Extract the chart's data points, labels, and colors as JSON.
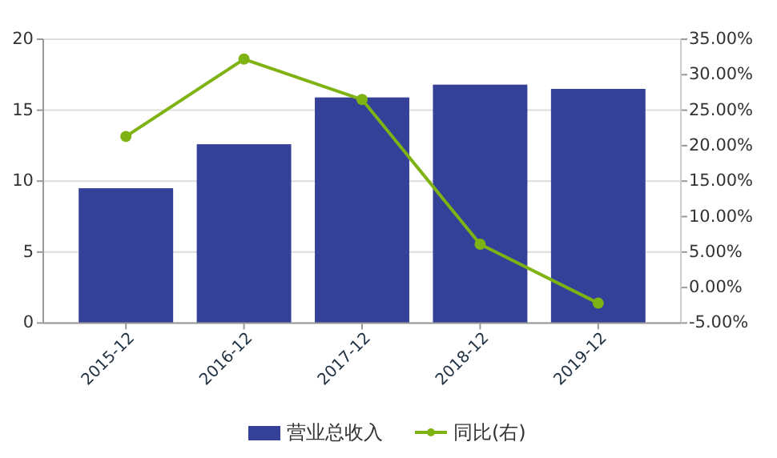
{
  "chart_data": {
    "type": "bar",
    "categories": [
      "2015-12",
      "2016-12",
      "2017-12",
      "2018-12",
      "2019-12"
    ],
    "series": [
      {
        "name": "营业总收入",
        "color": "#354099",
        "values": [
          9.5,
          12.6,
          15.9,
          16.8,
          16.5
        ]
      },
      {
        "name": "同比(右)",
        "type": "line",
        "axis": "y2",
        "color": "#7fb314",
        "marker": "circle",
        "values": [
          21.3,
          32.2,
          26.5,
          6.1,
          -2.2
        ]
      }
    ],
    "ylim": [
      0,
      20
    ],
    "yticks": [
      0,
      5,
      10,
      15,
      20
    ],
    "y2lim": [
      -5,
      35
    ],
    "y2ticks": [
      {
        "value": -5,
        "label": "-5.00%"
      },
      {
        "value": 0,
        "label": "0.00%"
      },
      {
        "value": 5,
        "label": "5.00%"
      },
      {
        "value": 10,
        "label": "10.00%"
      },
      {
        "value": 15,
        "label": "15.00%"
      },
      {
        "value": 20,
        "label": "20.00%"
      },
      {
        "value": 25,
        "label": "25.00%"
      },
      {
        "value": 30,
        "label": "30.00%"
      },
      {
        "value": 35,
        "label": "35.00%"
      }
    ],
    "grid": "y",
    "legend": "bottom"
  }
}
